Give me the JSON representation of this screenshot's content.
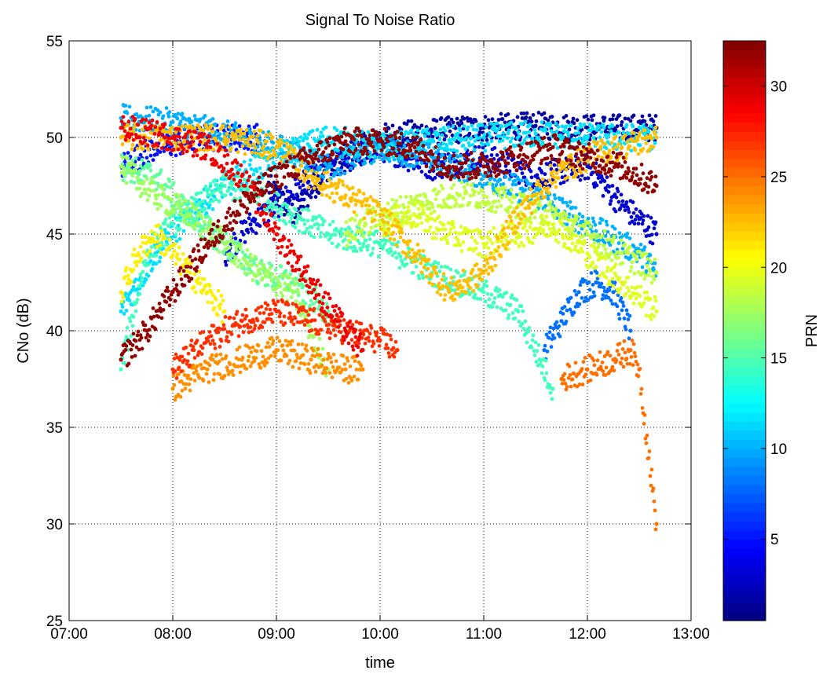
{
  "chart_data": {
    "type": "scatter",
    "title": "Signal To Noise Ratio",
    "xlabel": "time",
    "ylabel": "CNo (dB)",
    "x_ticks": [
      "07:00",
      "08:00",
      "09:00",
      "10:00",
      "11:00",
      "12:00",
      "13:00"
    ],
    "xlim": [
      "07:00",
      "13:00"
    ],
    "ylim": [
      25,
      55
    ],
    "y_ticks": [
      25,
      30,
      35,
      40,
      45,
      50,
      55
    ],
    "grid": true,
    "colorbar": {
      "label": "PRN",
      "range": [
        0.5,
        32.5
      ],
      "ticks": [
        5,
        10,
        15,
        20,
        25,
        30
      ],
      "colormap": "jet"
    },
    "series": [
      {
        "prn": 2,
        "color": "#00009f",
        "points": [
          [
            "08:55",
            47.5
          ],
          [
            "09:10",
            46.0
          ],
          [
            "09:30",
            48.5
          ],
          [
            "10:00",
            50.0
          ],
          [
            "10:30",
            50.3
          ],
          [
            "11:00",
            50.5
          ],
          [
            "11:30",
            50.6
          ],
          [
            "12:00",
            50.5
          ],
          [
            "12:40",
            50.5
          ]
        ]
      },
      {
        "prn": 3,
        "color": "#0000cf",
        "points": [
          [
            "08:30",
            44.0
          ],
          [
            "08:45",
            45.5
          ],
          [
            "09:00",
            46.5
          ],
          [
            "09:30",
            48.5
          ],
          [
            "10:00",
            49.5
          ],
          [
            "10:30",
            48.5
          ],
          [
            "11:00",
            49.0
          ],
          [
            "11:30",
            48.0
          ],
          [
            "12:00",
            48.5
          ],
          [
            "12:20",
            46.5
          ],
          [
            "12:40",
            45.0
          ]
        ]
      },
      {
        "prn": 5,
        "color": "#0010ff",
        "points": [
          [
            "07:30",
            48.5
          ],
          [
            "07:50",
            49.5
          ],
          [
            "08:20",
            50.0
          ],
          [
            "08:50",
            50.0
          ]
        ]
      },
      {
        "prn": 8,
        "color": "#0070ff",
        "points": [
          [
            "11:35",
            39.0
          ],
          [
            "11:45",
            40.5
          ],
          [
            "11:55",
            42.0
          ],
          [
            "12:05",
            42.5
          ],
          [
            "12:15",
            42.0
          ],
          [
            "12:25",
            40.0
          ]
        ]
      },
      {
        "prn": 10,
        "color": "#00b0ff",
        "points": [
          [
            "07:30",
            51.0
          ],
          [
            "08:00",
            50.8
          ],
          [
            "08:30",
            50.2
          ],
          [
            "09:00",
            49.5
          ],
          [
            "09:30",
            48.5
          ],
          [
            "10:00",
            49.5
          ],
          [
            "10:30",
            49.0
          ],
          [
            "11:00",
            48.0
          ],
          [
            "11:30",
            47.0
          ],
          [
            "12:00",
            45.5
          ],
          [
            "12:30",
            44.0
          ],
          [
            "12:40",
            43.0
          ]
        ]
      },
      {
        "prn": 12,
        "color": "#00e0ff",
        "points": [
          [
            "07:30",
            41.0
          ],
          [
            "07:50",
            44.0
          ],
          [
            "08:10",
            46.0
          ],
          [
            "08:30",
            47.5
          ],
          [
            "09:00",
            49.0
          ],
          [
            "09:30",
            50.0
          ],
          [
            "10:00",
            49.5
          ],
          [
            "10:30",
            49.8
          ],
          [
            "11:00",
            50.0
          ],
          [
            "11:30",
            50.2
          ],
          [
            "12:00",
            50.0
          ],
          [
            "12:40",
            50.0
          ]
        ]
      },
      {
        "prn": 15,
        "color": "#40ffbf",
        "points": [
          [
            "07:30",
            38.0
          ],
          [
            "07:45",
            44.0
          ],
          [
            "08:00",
            45.5
          ],
          [
            "08:15",
            46.5
          ],
          [
            "08:30",
            47.5
          ],
          [
            "08:50",
            47.0
          ],
          [
            "09:10",
            46.0
          ],
          [
            "09:30",
            45.0
          ],
          [
            "10:00",
            44.5
          ],
          [
            "10:30",
            43.0
          ],
          [
            "11:00",
            42.0
          ],
          [
            "11:20",
            41.0
          ],
          [
            "11:40",
            37.0
          ]
        ]
      },
      {
        "prn": 16,
        "color": "#60ff9f",
        "points": [
          [
            "07:30",
            48.5
          ],
          [
            "07:50",
            48.0
          ],
          [
            "08:10",
            46.0
          ],
          [
            "08:30",
            44.5
          ],
          [
            "08:50",
            43.0
          ],
          [
            "09:10",
            42.5
          ],
          [
            "09:30",
            41.0
          ]
        ]
      },
      {
        "prn": 18,
        "color": "#9fff60",
        "points": [
          [
            "07:30",
            48.5
          ],
          [
            "07:50",
            47.0
          ],
          [
            "08:10",
            46.0
          ],
          [
            "08:30",
            44.5
          ],
          [
            "08:50",
            43.0
          ],
          [
            "09:10",
            42.0
          ],
          [
            "09:20",
            40.0
          ],
          [
            "09:30",
            38.0
          ]
        ]
      },
      {
        "prn": 19,
        "color": "#bfff40",
        "points": [
          [
            "09:40",
            45.0
          ],
          [
            "10:00",
            46.0
          ],
          [
            "10:20",
            46.5
          ],
          [
            "10:40",
            47.0
          ],
          [
            "11:00",
            47.0
          ],
          [
            "11:20",
            46.5
          ],
          [
            "11:40",
            46.0
          ],
          [
            "12:00",
            45.0
          ],
          [
            "12:20",
            44.0
          ],
          [
            "12:40",
            43.0
          ]
        ]
      },
      {
        "prn": 20,
        "color": "#dfff20",
        "points": [
          [
            "10:00",
            45.5
          ],
          [
            "10:20",
            46.0
          ],
          [
            "10:40",
            45.0
          ],
          [
            "11:00",
            44.5
          ],
          [
            "11:20",
            45.0
          ],
          [
            "11:40",
            45.5
          ],
          [
            "12:00",
            44.0
          ],
          [
            "12:20",
            42.5
          ],
          [
            "12:40",
            41.0
          ]
        ]
      },
      {
        "prn": 21,
        "color": "#ffef00",
        "points": [
          [
            "07:30",
            42.0
          ],
          [
            "07:40",
            44.0
          ],
          [
            "07:50",
            45.0
          ],
          [
            "08:10",
            43.0
          ],
          [
            "08:20",
            42.0
          ],
          [
            "08:30",
            41.0
          ]
        ]
      },
      {
        "prn": 23,
        "color": "#ffbf00",
        "points": [
          [
            "07:30",
            50.0
          ],
          [
            "08:00",
            50.0
          ],
          [
            "08:30",
            50.0
          ],
          [
            "09:00",
            49.5
          ],
          [
            "09:20",
            48.0
          ],
          [
            "09:40",
            47.0
          ],
          [
            "10:00",
            46.0
          ],
          [
            "10:20",
            44.0
          ],
          [
            "10:40",
            42.0
          ],
          [
            "11:00",
            43.0
          ],
          [
            "11:20",
            46.0
          ],
          [
            "11:40",
            48.0
          ],
          [
            "12:00",
            49.0
          ],
          [
            "12:20",
            49.5
          ],
          [
            "12:40",
            50.0
          ]
        ]
      },
      {
        "prn": 25,
        "color": "#ff8f00",
        "points": [
          [
            "08:00",
            37.0
          ],
          [
            "08:20",
            38.0
          ],
          [
            "08:40",
            38.5
          ],
          [
            "09:00",
            39.0
          ],
          [
            "09:20",
            38.5
          ],
          [
            "09:40",
            38.0
          ],
          [
            "09:50",
            38.0
          ]
        ]
      },
      {
        "prn": 26,
        "color": "#ff6f00",
        "points": [
          [
            "11:45",
            37.5
          ],
          [
            "12:00",
            38.0
          ],
          [
            "12:15",
            38.5
          ],
          [
            "12:25",
            39.0
          ],
          [
            "12:30",
            38.0
          ],
          [
            "12:40",
            30.0
          ]
        ]
      },
      {
        "prn": 29,
        "color": "#ff2f00",
        "points": [
          [
            "08:00",
            38.0
          ],
          [
            "08:20",
            39.5
          ],
          [
            "08:40",
            40.5
          ],
          [
            "09:00",
            41.0
          ],
          [
            "09:20",
            40.5
          ],
          [
            "09:40",
            40.0
          ],
          [
            "10:00",
            39.5
          ],
          [
            "10:10",
            39.0
          ]
        ]
      },
      {
        "prn": 30,
        "color": "#ef0000",
        "points": [
          [
            "07:30",
            50.5
          ],
          [
            "08:00",
            50.0
          ],
          [
            "08:20",
            49.5
          ],
          [
            "08:40",
            48.0
          ],
          [
            "09:00",
            45.0
          ],
          [
            "09:20",
            42.5
          ],
          [
            "09:40",
            40.0
          ],
          [
            "09:50",
            39.0
          ]
        ]
      },
      {
        "prn": 32,
        "color": "#8f0000",
        "points": [
          [
            "07:30",
            38.5
          ],
          [
            "07:45",
            40.0
          ],
          [
            "08:00",
            42.0
          ],
          [
            "08:20",
            44.5
          ],
          [
            "08:40",
            46.5
          ],
          [
            "09:00",
            48.0
          ],
          [
            "09:20",
            49.0
          ],
          [
            "09:40",
            49.8
          ],
          [
            "10:00",
            49.8
          ],
          [
            "10:20",
            49.5
          ],
          [
            "10:40",
            48.5
          ],
          [
            "11:00",
            48.5
          ],
          [
            "11:20",
            49.0
          ],
          [
            "11:40",
            49.5
          ],
          [
            "12:00",
            49.0
          ],
          [
            "12:20",
            48.5
          ],
          [
            "12:40",
            47.5
          ]
        ]
      }
    ]
  }
}
